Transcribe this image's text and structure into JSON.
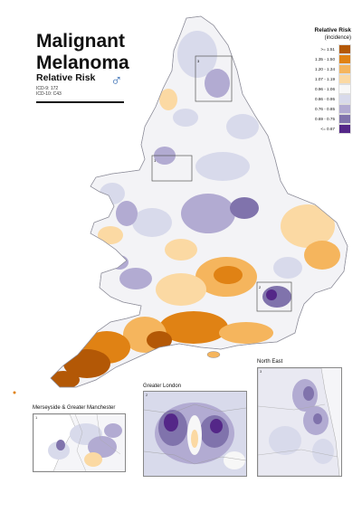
{
  "title_line1": "Malignant",
  "title_line2": "Melanoma",
  "subtitle": "Relative Risk",
  "codes": [
    "ICD-9: 172",
    "ICD-10: C43"
  ],
  "sex_symbol": "♂",
  "legend": {
    "title": "Relative Risk",
    "subtitle": "(incidence)",
    "classes": [
      {
        "label": ">= 1.51",
        "color": "#b35806"
      },
      {
        "label": "1.35 - 1.50",
        "color": "#e08214"
      },
      {
        "label": "1.20 - 1.34",
        "color": "#f5b55d"
      },
      {
        "label": "1.07 - 1.19",
        "color": "#fbd9a3"
      },
      {
        "label": "0.96 - 1.06",
        "color": "#f7f7f7"
      },
      {
        "label": "0.86 - 0.95",
        "color": "#d8daeb"
      },
      {
        "label": "0.76 - 0.85",
        "color": "#b2abd2"
      },
      {
        "label": "0.69 - 0.75",
        "color": "#8073ac"
      },
      {
        "label": "<= 0.67",
        "color": "#542788"
      }
    ]
  },
  "insets": [
    {
      "number": "1",
      "title": "Merseyside & Greater Manchester"
    },
    {
      "number": "2",
      "title": "Greater London"
    },
    {
      "number": "3",
      "title": "North East"
    }
  ],
  "map_box_numbers": [
    "1",
    "2",
    "3"
  ]
}
